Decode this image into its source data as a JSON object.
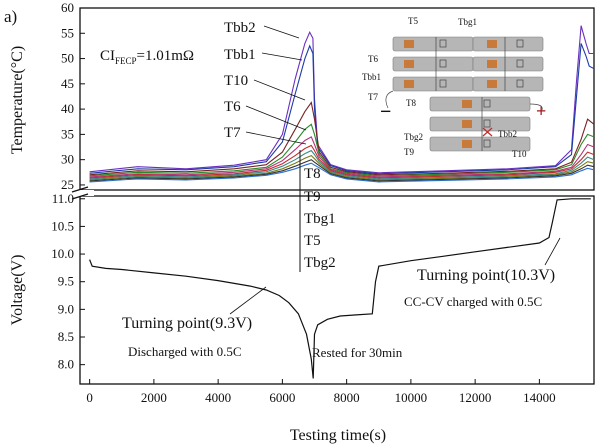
{
  "panel_label": "a)",
  "resistance_label": "CI",
  "resistance_sub": "FECP",
  "resistance_value": "=1.01mΩ",
  "sensor_labels_top": [
    "Tbb2",
    "Tbb1",
    "T10",
    "T6",
    "T7"
  ],
  "sensor_labels_mid": [
    "T8",
    "T9",
    "Tbg1",
    "T5",
    "Tbg2"
  ],
  "annotations": {
    "turning_left": "Turning point(9.3V)",
    "discharged": "Discharged with 0.5C",
    "rested": "Rested for 30min",
    "turning_right": "Turning point(10.3V)",
    "charged": "CC-CV charged with 0.5C"
  },
  "inset": {
    "labels": [
      "T5",
      "Tbg1",
      "T6",
      "Tbb1",
      "T7",
      "T8",
      "Tbb2",
      "Tbg2",
      "T9",
      "T10"
    ],
    "minus": "−",
    "plus": "+"
  },
  "chart_data": [
    {
      "type": "line",
      "title": "",
      "xlabel": "Testing time(s)",
      "ylabel": "Temperature(°C)",
      "xlim": [
        -300,
        15700
      ],
      "ylim": [
        24,
        60
      ],
      "yticks": [
        25,
        30,
        35,
        40,
        45,
        50,
        55,
        60
      ],
      "series": [
        {
          "name": "Tbb2",
          "color": "#6b2fbf",
          "points": [
            [
              0,
              27.6
            ],
            [
              1500,
              28.6
            ],
            [
              3000,
              28.2
            ],
            [
              4500,
              28.9
            ],
            [
              5500,
              30
            ],
            [
              6000,
              35
            ],
            [
              6400,
              46
            ],
            [
              6700,
              53
            ],
            [
              6850,
              55.2
            ],
            [
              6950,
              54
            ],
            [
              7000,
              42
            ],
            [
              7100,
              33
            ],
            [
              7500,
              29
            ],
            [
              8000,
              28
            ],
            [
              9000,
              27.4
            ],
            [
              11000,
              27.8
            ],
            [
              13000,
              28.2
            ],
            [
              14500,
              28.8
            ],
            [
              15000,
              32
            ],
            [
              15150,
              45
            ],
            [
              15300,
              56.5
            ],
            [
              15450,
              53
            ],
            [
              15550,
              51
            ],
            [
              15700,
              51
            ]
          ]
        },
        {
          "name": "Tbb1",
          "color": "#1e3ca8",
          "points": [
            [
              0,
              27.3
            ],
            [
              1500,
              28.2
            ],
            [
              3000,
              28
            ],
            [
              4500,
              28.6
            ],
            [
              5500,
              29.6
            ],
            [
              6000,
              33.5
            ],
            [
              6400,
              43
            ],
            [
              6700,
              50
            ],
            [
              6850,
              52.5
            ],
            [
              6950,
              51
            ],
            [
              7000,
              40
            ],
            [
              7100,
              32.5
            ],
            [
              7500,
              28.8
            ],
            [
              8000,
              27.8
            ],
            [
              9000,
              27.2
            ],
            [
              11000,
              27.6
            ],
            [
              13000,
              28
            ],
            [
              14500,
              28.6
            ],
            [
              15000,
              31
            ],
            [
              15150,
              42
            ],
            [
              15300,
              53
            ],
            [
              15450,
              50.5
            ],
            [
              15550,
              48.5
            ],
            [
              15700,
              48
            ]
          ]
        },
        {
          "name": "T10",
          "color": "#7a2222",
          "points": [
            [
              0,
              27
            ],
            [
              1500,
              27.8
            ],
            [
              3000,
              27.6
            ],
            [
              4500,
              28.2
            ],
            [
              5500,
              29
            ],
            [
              6000,
              31.5
            ],
            [
              6400,
              36
            ],
            [
              6700,
              39.5
            ],
            [
              6900,
              41.3
            ],
            [
              7000,
              38
            ],
            [
              7150,
              31.5
            ],
            [
              7500,
              28.5
            ],
            [
              8000,
              27.6
            ],
            [
              9000,
              27
            ],
            [
              11000,
              27.3
            ],
            [
              13000,
              27.7
            ],
            [
              14500,
              28.2
            ],
            [
              15000,
              29.5
            ],
            [
              15300,
              34
            ],
            [
              15500,
              38
            ],
            [
              15700,
              37
            ]
          ]
        },
        {
          "name": "T6",
          "color": "#2a8a2a",
          "points": [
            [
              0,
              26.8
            ],
            [
              1500,
              27.5
            ],
            [
              3000,
              27.3
            ],
            [
              4500,
              27.8
            ],
            [
              5500,
              28.5
            ],
            [
              6000,
              30.5
            ],
            [
              6400,
              33.5
            ],
            [
              6700,
              36
            ],
            [
              6900,
              37
            ],
            [
              7000,
              35
            ],
            [
              7150,
              31
            ],
            [
              7500,
              28.2
            ],
            [
              8000,
              27.4
            ],
            [
              9000,
              26.8
            ],
            [
              11000,
              27.1
            ],
            [
              13000,
              27.5
            ],
            [
              14500,
              28
            ],
            [
              15000,
              29
            ],
            [
              15300,
              33
            ],
            [
              15500,
              35
            ],
            [
              15700,
              34.5
            ]
          ]
        },
        {
          "name": "T7",
          "color": "#b5337a",
          "points": [
            [
              0,
              26.6
            ],
            [
              1500,
              27.2
            ],
            [
              3000,
              27
            ],
            [
              4500,
              27.5
            ],
            [
              5500,
              28.2
            ],
            [
              6000,
              29.8
            ],
            [
              6400,
              32
            ],
            [
              6700,
              33.8
            ],
            [
              6900,
              34.5
            ],
            [
              7000,
              33
            ],
            [
              7150,
              30.5
            ],
            [
              7500,
              28
            ],
            [
              8000,
              27.2
            ],
            [
              9000,
              26.6
            ],
            [
              11000,
              26.9
            ],
            [
              13000,
              27.2
            ],
            [
              14500,
              27.7
            ],
            [
              15000,
              28.5
            ],
            [
              15300,
              31
            ],
            [
              15500,
              33
            ],
            [
              15700,
              32.5
            ]
          ]
        },
        {
          "name": "T8",
          "color": "#c22d2d",
          "points": [
            [
              0,
              26.4
            ],
            [
              1500,
              27
            ],
            [
              3000,
              26.8
            ],
            [
              4500,
              27.2
            ],
            [
              5500,
              27.9
            ],
            [
              6000,
              29.2
            ],
            [
              6400,
              30.8
            ],
            [
              6700,
              32.2
            ],
            [
              6900,
              32.8
            ],
            [
              7000,
              31.8
            ],
            [
              7150,
              30
            ],
            [
              7500,
              27.8
            ],
            [
              8000,
              27
            ],
            [
              9000,
              26.4
            ],
            [
              11000,
              26.7
            ],
            [
              13000,
              27
            ],
            [
              14500,
              27.5
            ],
            [
              15000,
              28.2
            ],
            [
              15300,
              30
            ],
            [
              15500,
              31.5
            ],
            [
              15700,
              31
            ]
          ]
        },
        {
          "name": "T9",
          "color": "#3c8a8a",
          "points": [
            [
              0,
              26.2
            ],
            [
              1500,
              26.8
            ],
            [
              3000,
              26.6
            ],
            [
              4500,
              27
            ],
            [
              5500,
              27.6
            ],
            [
              6000,
              28.7
            ],
            [
              6400,
              30
            ],
            [
              6700,
              31.2
            ],
            [
              6900,
              31.8
            ],
            [
              7000,
              31
            ],
            [
              7150,
              29.6
            ],
            [
              7500,
              27.6
            ],
            [
              8000,
              26.8
            ],
            [
              9000,
              26.2
            ],
            [
              11000,
              26.5
            ],
            [
              13000,
              26.8
            ],
            [
              14500,
              27.2
            ],
            [
              15000,
              27.9
            ],
            [
              15300,
              29.3
            ],
            [
              15500,
              30.5
            ],
            [
              15700,
              30
            ]
          ]
        },
        {
          "name": "Tbg1",
          "color": "#7a7a1a",
          "points": [
            [
              0,
              26
            ],
            [
              1500,
              26.6
            ],
            [
              3000,
              26.4
            ],
            [
              4500,
              26.8
            ],
            [
              5500,
              27.3
            ],
            [
              6000,
              28.2
            ],
            [
              6400,
              29.3
            ],
            [
              6700,
              30.3
            ],
            [
              6900,
              30.8
            ],
            [
              7000,
              30.2
            ],
            [
              7150,
              29.2
            ],
            [
              7500,
              27.4
            ],
            [
              8000,
              26.6
            ],
            [
              9000,
              26
            ],
            [
              11000,
              26.3
            ],
            [
              13000,
              26.6
            ],
            [
              14500,
              27
            ],
            [
              15000,
              27.6
            ],
            [
              15300,
              28.7
            ],
            [
              15500,
              29.6
            ],
            [
              15700,
              29.3
            ]
          ]
        },
        {
          "name": "T5",
          "color": "#333333",
          "points": [
            [
              0,
              25.8
            ],
            [
              1500,
              26.4
            ],
            [
              3000,
              26.2
            ],
            [
              4500,
              26.6
            ],
            [
              5500,
              27.1
            ],
            [
              6000,
              27.8
            ],
            [
              6400,
              28.7
            ],
            [
              6700,
              29.5
            ],
            [
              6900,
              30
            ],
            [
              7000,
              29.5
            ],
            [
              7150,
              28.8
            ],
            [
              7500,
              27.2
            ],
            [
              8000,
              26.4
            ],
            [
              9000,
              25.8
            ],
            [
              11000,
              26.1
            ],
            [
              13000,
              26.4
            ],
            [
              14500,
              26.8
            ],
            [
              15000,
              27.3
            ],
            [
              15300,
              28.2
            ],
            [
              15500,
              28.9
            ],
            [
              15700,
              28.6
            ]
          ]
        },
        {
          "name": "Tbg2",
          "color": "#2d6fd0",
          "points": [
            [
              0,
              25.6
            ],
            [
              1500,
              26.2
            ],
            [
              3000,
              26
            ],
            [
              4500,
              26.4
            ],
            [
              5500,
              26.9
            ],
            [
              6000,
              27.5
            ],
            [
              6400,
              28.2
            ],
            [
              6700,
              28.9
            ],
            [
              6900,
              29.3
            ],
            [
              7000,
              28.9
            ],
            [
              7150,
              28.4
            ],
            [
              7500,
              27
            ],
            [
              8000,
              26.2
            ],
            [
              9000,
              25.6
            ],
            [
              11000,
              25.9
            ],
            [
              13000,
              26.2
            ],
            [
              14500,
              26.6
            ],
            [
              15000,
              27
            ],
            [
              15300,
              27.8
            ],
            [
              15500,
              28.3
            ],
            [
              15700,
              28
            ]
          ]
        }
      ]
    },
    {
      "type": "line",
      "title": "",
      "xlabel": "Testing time(s)",
      "ylabel": "Voltage(V)",
      "xlim": [
        -300,
        15700
      ],
      "ylim": [
        7.65,
        11.05
      ],
      "xticks": [
        0,
        2000,
        4000,
        6000,
        8000,
        10000,
        12000,
        14000
      ],
      "yticks": [
        8.0,
        8.5,
        9.0,
        9.5,
        10.0,
        10.5,
        11.0
      ],
      "series": [
        {
          "name": "Voltage",
          "color": "#111111",
          "points": [
            [
              0,
              9.9
            ],
            [
              80,
              9.78
            ],
            [
              500,
              9.74
            ],
            [
              1000,
              9.72
            ],
            [
              2000,
              9.66
            ],
            [
              3000,
              9.6
            ],
            [
              4000,
              9.52
            ],
            [
              5000,
              9.42
            ],
            [
              5500,
              9.35
            ],
            [
              5900,
              9.25
            ],
            [
              6200,
              9.12
            ],
            [
              6500,
              8.92
            ],
            [
              6750,
              8.55
            ],
            [
              6900,
              8.1
            ],
            [
              6960,
              7.75
            ],
            [
              7000,
              8.55
            ],
            [
              7100,
              8.72
            ],
            [
              7400,
              8.82
            ],
            [
              7800,
              8.88
            ],
            [
              8300,
              8.9
            ],
            [
              8800,
              8.92
            ],
            [
              8900,
              9.5
            ],
            [
              9000,
              9.78
            ],
            [
              10000,
              9.88
            ],
            [
              11000,
              9.96
            ],
            [
              12000,
              10.04
            ],
            [
              13000,
              10.12
            ],
            [
              14000,
              10.2
            ],
            [
              14300,
              10.3
            ],
            [
              14400,
              10.56
            ],
            [
              14550,
              10.98
            ],
            [
              15000,
              11.0
            ],
            [
              15600,
              11.0
            ]
          ]
        }
      ]
    }
  ]
}
